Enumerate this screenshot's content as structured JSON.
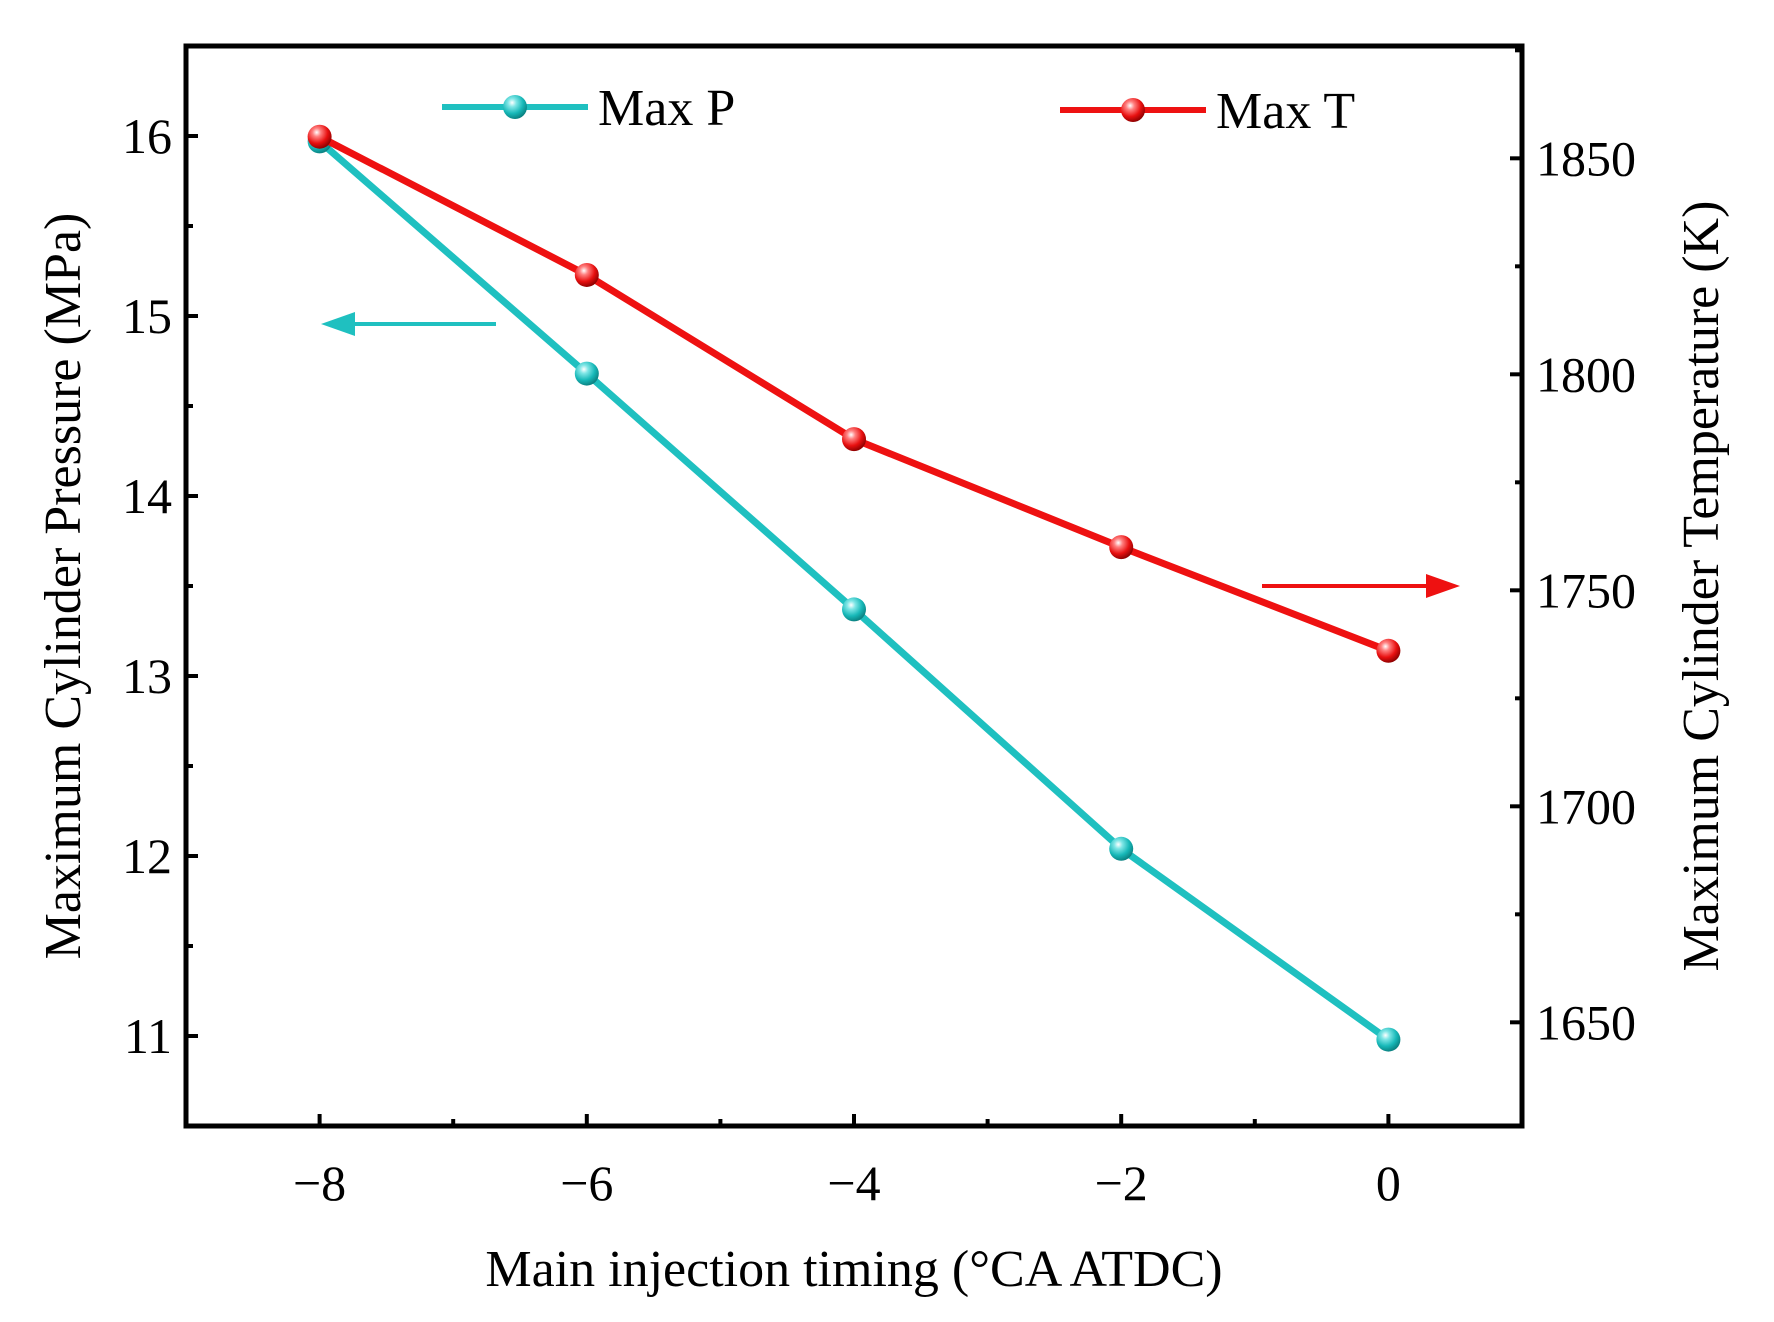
{
  "chart_data": {
    "type": "line",
    "title": "",
    "xlabel": "Main injection timing (°CA ATDC)",
    "ylabel_left": "Maximum Cylinder Pressure (MPa)",
    "ylabel_right": "Maximum Cylinder Temperature (K)",
    "x": [
      -8,
      -6,
      -4,
      -2,
      0
    ],
    "x_ticks": [
      -8,
      -6,
      -4,
      -2,
      0
    ],
    "x_tick_labels": [
      "−8",
      "−6",
      "−4",
      "−2",
      "0"
    ],
    "xlim": [
      -9,
      1
    ],
    "ylim_left": [
      10.5,
      16.5
    ],
    "ylim_right": [
      1626,
      1876
    ],
    "y_ticks_left": [
      11,
      12,
      13,
      14,
      15,
      16
    ],
    "y_ticks_right": [
      1650,
      1700,
      1750,
      1800,
      1850
    ],
    "series": [
      {
        "name": "Max P",
        "axis": "left",
        "color": "#1fc0c0",
        "values": [
          15.97,
          14.68,
          13.37,
          12.04,
          10.98
        ]
      },
      {
        "name": "Max T",
        "axis": "right",
        "color": "#ee1111",
        "values": [
          1855,
          1823,
          1785,
          1760,
          1736
        ]
      }
    ],
    "annotations": [
      {
        "type": "arrow",
        "direction": "left",
        "points_to": "left-axis",
        "series": "Max P"
      },
      {
        "type": "arrow",
        "direction": "right",
        "points_to": "right-axis",
        "series": "Max T"
      }
    ],
    "grid": false,
    "legend_position": "top"
  }
}
